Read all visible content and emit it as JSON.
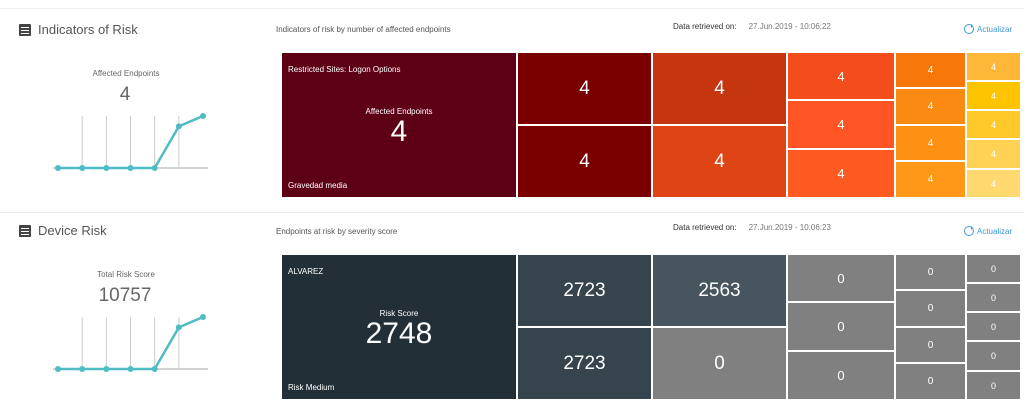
{
  "panels": [
    {
      "title": "Indicators of Risk",
      "subtitle": "Indicators of risk by number of affected endpoints",
      "retrieved_label": "Data retrieved on:",
      "retrieved_value": "27.Jun.2019 - 10:06:22",
      "refresh_label": "Actualizar",
      "kpi_label": "Affected Endpoints",
      "kpi_value": "4",
      "spark_values": [
        0,
        0,
        0,
        0,
        0,
        2,
        2.5
      ],
      "tiles": [
        {
          "name": "Restricted Sites: Logon Options",
          "label": "Affected Endpoints",
          "value": "4",
          "footer": "Gravedad media",
          "color": "#5d0016"
        },
        {
          "value": "4",
          "color": "#7a0000"
        },
        {
          "value": "4",
          "color": "#7a0000"
        },
        {
          "value": "4",
          "color": "#c43510"
        },
        {
          "value": "4",
          "color": "#df4414"
        },
        {
          "value": "4",
          "color": "#f24d1a"
        },
        {
          "value": "4",
          "color": "#ff5524"
        },
        {
          "value": "4",
          "color": "#ff5a22"
        },
        {
          "value": "4",
          "color": "#f7770a"
        },
        {
          "value": "4",
          "color": "#fb8a12"
        },
        {
          "value": "4",
          "color": "#fe9013"
        },
        {
          "value": "4",
          "color": "#ff9816"
        },
        {
          "value": "4",
          "color": "#ffb73a"
        },
        {
          "value": "4",
          "color": "#ffc400"
        },
        {
          "value": "4",
          "color": "#ffc929"
        },
        {
          "value": "4",
          "color": "#ffd256"
        },
        {
          "value": "4",
          "color": "#ffd870"
        }
      ]
    },
    {
      "title": "Device Risk",
      "subtitle": "Endpoints at risk by severity score",
      "retrieved_label": "Data retrieved on:",
      "retrieved_value": "27.Jun.2019 - 10:06:23",
      "refresh_label": "Actualizar",
      "kpi_label": "Total Risk Score",
      "kpi_value": "10757",
      "spark_values": [
        0,
        0,
        0,
        0,
        0,
        2,
        2.5
      ],
      "tiles": [
        {
          "name": "ALVAREZ",
          "label": "Risk Score",
          "value": "2748",
          "footer": "Risk Medium",
          "color": "#232f37"
        },
        {
          "value": "2723",
          "color": "#35444d"
        },
        {
          "value": "2723",
          "color": "#35444d"
        },
        {
          "value": "2563",
          "color": "#46555e"
        },
        {
          "value": "0",
          "color": "#808080"
        },
        {
          "value": "0",
          "color": "#808080"
        },
        {
          "value": "0",
          "color": "#808080"
        },
        {
          "value": "0",
          "color": "#808080"
        },
        {
          "value": "0",
          "color": "#808080"
        },
        {
          "value": "0",
          "color": "#808080"
        },
        {
          "value": "0",
          "color": "#808080"
        },
        {
          "value": "0",
          "color": "#808080"
        },
        {
          "value": "0",
          "color": "#808080"
        },
        {
          "value": "0",
          "color": "#808080"
        },
        {
          "value": "0",
          "color": "#808080"
        },
        {
          "value": "0",
          "color": "#808080"
        },
        {
          "value": "0",
          "color": "#808080"
        }
      ]
    }
  ]
}
